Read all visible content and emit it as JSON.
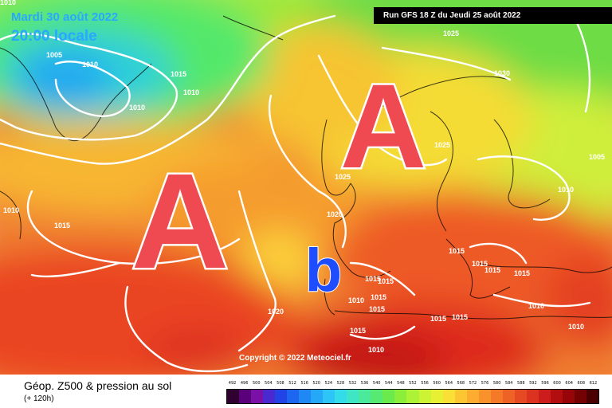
{
  "header": {
    "valid_date": "Mardi 30 août 2022",
    "valid_time": "20:00 locale",
    "run": "Run GFS 18 Z du Jeudi 25 août 2022"
  },
  "centers": [
    {
      "symbol": "A",
      "type": "high",
      "color": "#ef4a52"
    },
    {
      "symbol": "A",
      "type": "high",
      "color": "#ef4a52"
    },
    {
      "symbol": "b",
      "type": "low",
      "color": "#1e4cff"
    }
  ],
  "isobars": {
    "1005": "1005",
    "1010": "1010",
    "1015": "1015",
    "1020": "1020",
    "1025": "1025",
    "1030": "1030"
  },
  "copyright": "Copyright © 2022 Meteociel.fr",
  "footer": {
    "title": "Géop. Z500 & pression au sol",
    "subtitle": "(+ 120h)"
  },
  "scale": {
    "ticks": [
      "492",
      "496",
      "500",
      "504",
      "508",
      "512",
      "516",
      "520",
      "524",
      "528",
      "532",
      "536",
      "540",
      "544",
      "548",
      "552",
      "556",
      "560",
      "564",
      "568",
      "572",
      "576",
      "580",
      "584",
      "588",
      "592",
      "596",
      "600",
      "604",
      "608",
      "612"
    ],
    "colors": [
      "#300030",
      "#5a007a",
      "#7a10a8",
      "#4a2ad0",
      "#2244e6",
      "#1d66ef",
      "#1f88f4",
      "#25a8f8",
      "#2dc4f6",
      "#34dbe8",
      "#3ee6c6",
      "#4ae99c",
      "#57ea72",
      "#6aea4c",
      "#8aee3a",
      "#acf236",
      "#ccf434",
      "#e8f034",
      "#fae036",
      "#fcc633",
      "#fcac2e",
      "#f9922a",
      "#f47a28",
      "#ee6225",
      "#e64a22",
      "#dc3220",
      "#cc1c1c",
      "#b20e10",
      "#960608",
      "#740204",
      "#4a0000"
    ]
  }
}
